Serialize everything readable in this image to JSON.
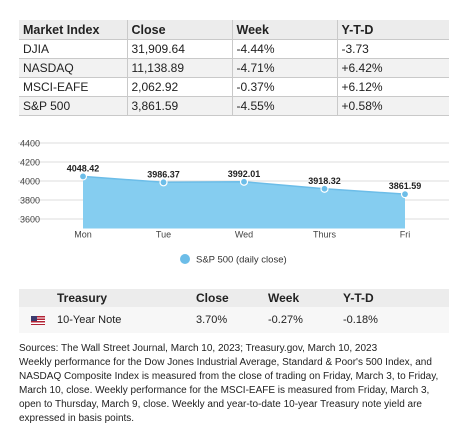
{
  "market_table": {
    "headers": [
      "Market Index",
      "Close",
      "Week",
      "Y-T-D"
    ],
    "rows": [
      [
        "DJIA",
        "31,909.64",
        "-4.44%",
        "-3.73"
      ],
      [
        "NASDAQ",
        "11,138.89",
        "-4.71%",
        "+6.42%"
      ],
      [
        "MSCI-EAFE",
        "2,062.92",
        "-0.37%",
        "+6.12%"
      ],
      [
        "S&P 500",
        "3,861.59",
        "-4.55%",
        "+0.58%"
      ]
    ]
  },
  "chart_data": {
    "type": "area",
    "categories": [
      "Mon",
      "Tue",
      "Wed",
      "Thurs",
      "Fri"
    ],
    "series": [
      {
        "name": "S&P 500 (daily close)",
        "values": [
          4048.42,
          3986.37,
          3992.01,
          3918.32,
          3861.59
        ]
      }
    ],
    "data_labels": [
      "4048.42",
      "3986.37",
      "3992.01",
      "3918.32",
      "3861.59"
    ],
    "y_ticks": [
      "4400",
      "4200",
      "4000",
      "3800",
      "3600"
    ],
    "ylim": [
      3500,
      4400
    ],
    "grid": true,
    "legend_position": "bottom",
    "color": "#6cbde8",
    "fill_color": "#85cdf0"
  },
  "treasury_table": {
    "headers": [
      "Treasury",
      "Close",
      "Week",
      "Y-T-D"
    ],
    "row": {
      "flag_icon": "us-flag-icon",
      "name": "10-Year Note",
      "close": "3.70%",
      "week": "-0.27%",
      "ytd": "-0.18%"
    }
  },
  "footnote": {
    "sources": "Sources: The Wall Street Journal, March 10, 2023; Treasury.gov, March 10, 2023",
    "body": "Weekly performance for the Dow Jones Industrial Average, Standard & Poor's 500 Index, and NASDAQ Composite Index is measured from the close of trading on Friday, March 3, to Friday, March 10, close. Weekly performance for the MSCI-EAFE is measured from Friday, March 3, open to Thursday, March 9, close. Weekly and year-to-date 10-year Treasury note yield are expressed in basis points."
  }
}
